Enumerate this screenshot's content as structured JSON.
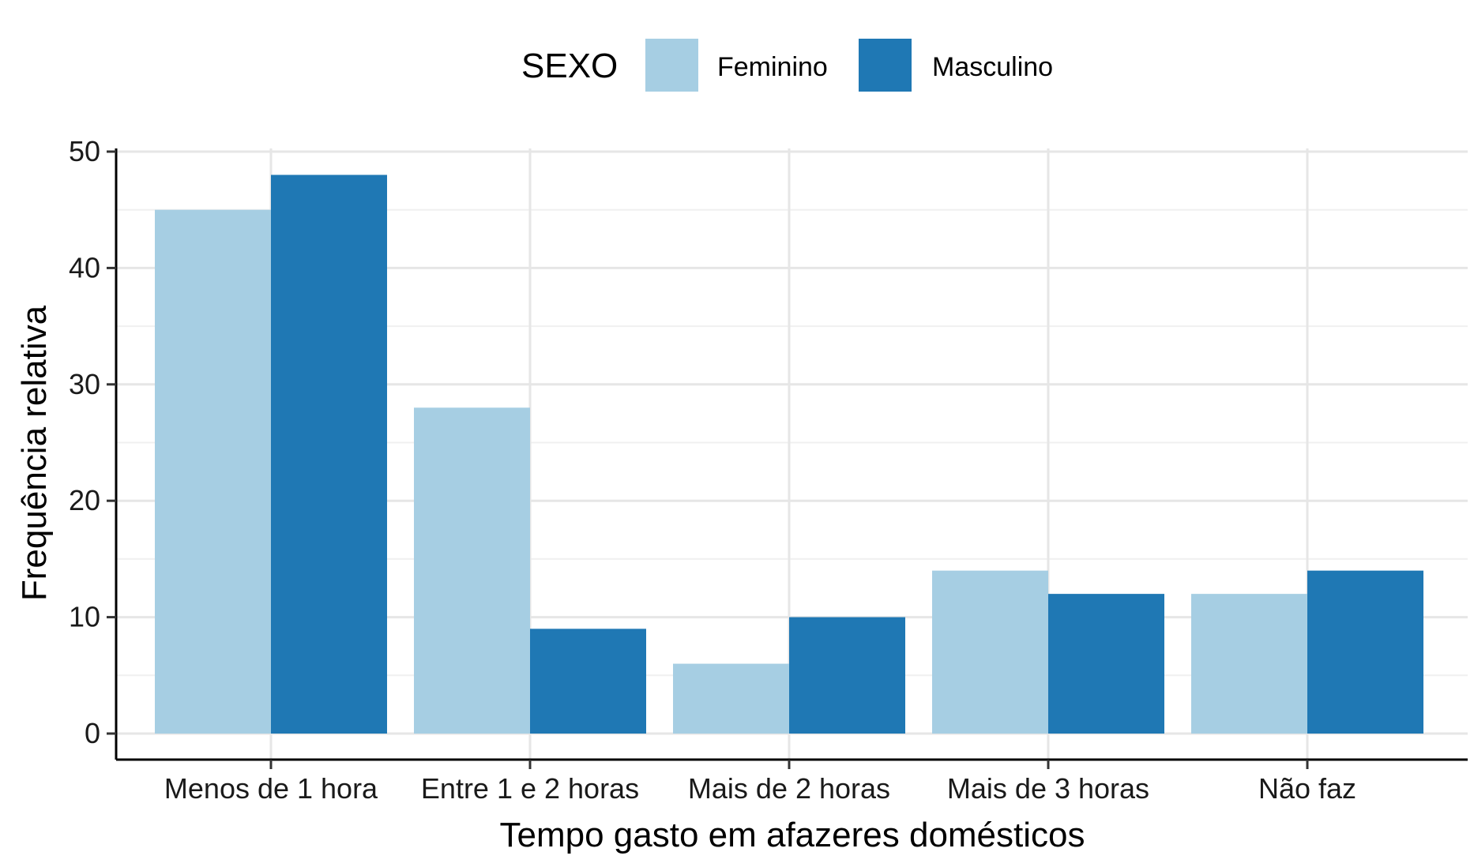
{
  "chart_data": {
    "type": "bar",
    "categories": [
      "Menos de 1 hora",
      "Entre 1 e 2 horas",
      "Mais de 2 horas",
      "Mais de 3 horas",
      "Não faz"
    ],
    "series": [
      {
        "name": "Feminino",
        "color": "#a6cee3",
        "values": [
          45,
          28,
          6,
          14,
          12
        ]
      },
      {
        "name": "Masculino",
        "color": "#1f78b4",
        "values": [
          48,
          9,
          10,
          12,
          14
        ]
      }
    ],
    "xlabel": "Tempo gasto em afazeres domésticos",
    "ylabel": "Frequência relativa",
    "ylim": [
      0,
      50
    ],
    "yticks": [
      0,
      10,
      20,
      30,
      40,
      50
    ],
    "legend": {
      "title": "SEXO",
      "position": "top"
    },
    "grid": true
  }
}
